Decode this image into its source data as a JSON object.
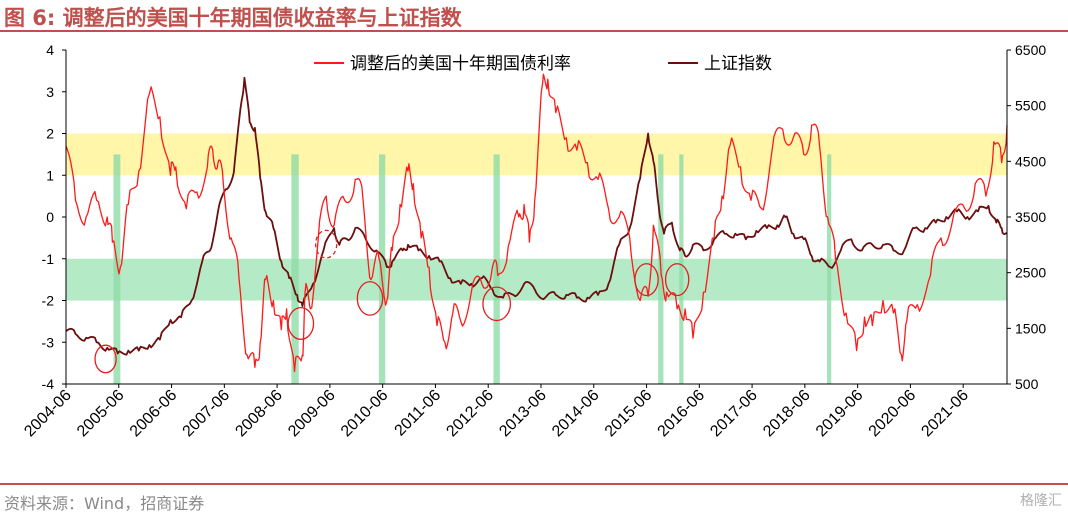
{
  "figure": {
    "title": "图 6:  调整后的美国十年期国债收益率与上证指数",
    "source": "资料来源：Wind，招商证券",
    "watermark": "格隆汇"
  },
  "colors": {
    "us10y": "#ff1a1a",
    "shanghai": "#6b0e0e",
    "high_band": "#fff59a",
    "low_band": "#a8e6bc",
    "event_bar": "#8fdca6",
    "circle": "#e02020"
  },
  "chart_data": {
    "type": "line",
    "title": "",
    "x_ticks": [
      "2004-06",
      "2005-06",
      "2006-06",
      "2007-06",
      "2008-06",
      "2009-06",
      "2010-06",
      "2011-06",
      "2012-06",
      "2013-06",
      "2014-06",
      "2015-06",
      "2016-06",
      "2017-06",
      "2018-06",
      "2019-06",
      "2020-06",
      "2021-06"
    ],
    "x_range": [
      2004.42,
      2022.25
    ],
    "y_left": {
      "ylim": [
        -4,
        4
      ],
      "ticks": [
        "4",
        "3",
        "2",
        "1",
        "0",
        "-1",
        "-2",
        "-3",
        "-4"
      ]
    },
    "y_right": {
      "ylim": [
        500,
        6500
      ],
      "ticks": [
        "6500",
        "5500",
        "4500",
        "3500",
        "2500",
        "1500",
        "500"
      ]
    },
    "bands": [
      {
        "name": "high",
        "axis": "left",
        "range": [
          1,
          2
        ]
      },
      {
        "name": "low",
        "axis": "left",
        "range": [
          -2,
          -1
        ]
      }
    ],
    "event_bars": [
      {
        "start": 2005.32,
        "end": 2005.45
      },
      {
        "start": 2008.69,
        "end": 2008.83
      },
      {
        "start": 2010.35,
        "end": 2010.47
      },
      {
        "start": 2012.52,
        "end": 2012.64
      },
      {
        "start": 2015.64,
        "end": 2015.74
      },
      {
        "start": 2016.04,
        "end": 2016.12
      },
      {
        "start": 2018.84,
        "end": 2018.92
      }
    ],
    "circles": [
      {
        "x": 2005.17,
        "y": -3.4,
        "rx": 0.2,
        "ry": 0.33,
        "style": "solid"
      },
      {
        "x": 2008.87,
        "y": -2.55,
        "rx": 0.24,
        "ry": 0.38,
        "style": "solid"
      },
      {
        "x": 2009.35,
        "y": -0.65,
        "rx": 0.2,
        "ry": 0.33,
        "style": "dashed"
      },
      {
        "x": 2010.18,
        "y": -1.95,
        "rx": 0.24,
        "ry": 0.4,
        "style": "solid"
      },
      {
        "x": 2012.58,
        "y": -2.08,
        "rx": 0.26,
        "ry": 0.4,
        "style": "solid"
      },
      {
        "x": 2015.42,
        "y": -1.5,
        "rx": 0.22,
        "ry": 0.38,
        "style": "solid"
      },
      {
        "x": 2016.0,
        "y": -1.5,
        "rx": 0.22,
        "ry": 0.38,
        "style": "solid"
      }
    ],
    "series": [
      {
        "name": "调整后的美国十年期国债利率",
        "axis": "left",
        "color": "#ff1a1a",
        "x": [
          2004.42,
          2004.6,
          2004.8,
          2005.0,
          2005.2,
          2005.3,
          2005.45,
          2005.6,
          2005.8,
          2006.0,
          2006.2,
          2006.4,
          2006.5,
          2006.7,
          2006.9,
          2007.1,
          2007.2,
          2007.3,
          2007.4,
          2007.55,
          2007.7,
          2007.85,
          2008.0,
          2008.1,
          2008.2,
          2008.35,
          2008.5,
          2008.6,
          2008.75,
          2008.9,
          2008.95,
          2009.05,
          2009.2,
          2009.35,
          2009.5,
          2009.7,
          2009.9,
          2010.05,
          2010.2,
          2010.35,
          2010.5,
          2010.6,
          2010.75,
          2010.9,
          2011.0,
          2011.15,
          2011.3,
          2011.45,
          2011.6,
          2011.75,
          2011.9,
          2012.1,
          2012.3,
          2012.5,
          2012.6,
          2012.8,
          2013.0,
          2013.1,
          2013.2,
          2013.3,
          2013.45,
          2013.55,
          2013.7,
          2013.9,
          2014.1,
          2014.3,
          2014.5,
          2014.7,
          2014.9,
          2015.1,
          2015.3,
          2015.45,
          2015.55,
          2015.7,
          2015.8,
          2016.0,
          2016.15,
          2016.3,
          2016.5,
          2016.7,
          2016.85,
          2017.0,
          2017.2,
          2017.4,
          2017.6,
          2017.8,
          2018.0,
          2018.2,
          2018.4,
          2018.55,
          2018.7,
          2018.85,
          2019.0,
          2019.2,
          2019.4,
          2019.55,
          2019.7,
          2019.9,
          2020.1,
          2020.25,
          2020.35,
          2020.55,
          2020.8,
          2021.0,
          2021.2,
          2021.45,
          2021.65,
          2021.85,
          2022.0,
          2022.15,
          2022.25
        ],
        "y": [
          1.7,
          0.4,
          0.0,
          0.4,
          0.0,
          -0.6,
          -1.2,
          0.3,
          1.1,
          2.95,
          2.4,
          1.0,
          1.2,
          0.2,
          0.6,
          1.2,
          1.6,
          1.3,
          0.8,
          -0.5,
          -1.5,
          -3.3,
          -3.6,
          -3.0,
          -1.5,
          -2.0,
          -2.7,
          -2.2,
          -3.7,
          -3.3,
          -1.8,
          -2.2,
          -0.5,
          0.5,
          -0.2,
          0.4,
          0.9,
          0.4,
          -1.5,
          -1.0,
          -2.0,
          -0.8,
          0.3,
          1.1,
          0.8,
          -0.5,
          -1.2,
          -2.6,
          -3.0,
          -2.3,
          -2.5,
          -1.8,
          -1.6,
          -1.2,
          -1.4,
          -0.7,
          0.0,
          0.3,
          -0.6,
          0.4,
          3.2,
          3.3,
          2.5,
          1.9,
          1.6,
          1.3,
          0.9,
          0.2,
          0.0,
          -0.5,
          -2.0,
          -1.9,
          -0.2,
          -1.4,
          -1.8,
          -2.2,
          -2.2,
          -2.9,
          -1.8,
          -0.5,
          0.5,
          1.7,
          1.2,
          0.4,
          0.2,
          1.6,
          2.1,
          1.9,
          1.5,
          2.2,
          1.7,
          0.0,
          -1.0,
          -2.3,
          -3.2,
          -2.4,
          -2.6,
          -2.0,
          -2.3,
          -3.3,
          -2.5,
          -2.1,
          -1.4,
          -0.5,
          -0.2,
          0.2,
          0.8,
          0.5,
          1.8,
          1.3,
          2.2
        ]
      },
      {
        "name": "上证指数",
        "axis": "right",
        "color": "#6b0e0e",
        "x": [
          2004.42,
          2004.6,
          2004.8,
          2005.0,
          2005.2,
          2005.4,
          2005.6,
          2005.8,
          2006.0,
          2006.2,
          2006.4,
          2006.6,
          2006.8,
          2007.0,
          2007.15,
          2007.3,
          2007.45,
          2007.6,
          2007.75,
          2007.8,
          2007.9,
          2008.0,
          2008.1,
          2008.2,
          2008.35,
          2008.5,
          2008.65,
          2008.8,
          2008.9,
          2009.1,
          2009.3,
          2009.5,
          2009.6,
          2009.75,
          2009.9,
          2010.1,
          2010.3,
          2010.5,
          2010.6,
          2010.8,
          2010.9,
          2011.1,
          2011.3,
          2011.5,
          2011.7,
          2011.9,
          2012.1,
          2012.3,
          2012.5,
          2012.7,
          2012.9,
          2013.1,
          2013.3,
          2013.5,
          2013.7,
          2013.9,
          2014.1,
          2014.3,
          2014.5,
          2014.7,
          2014.9,
          2015.1,
          2015.3,
          2015.45,
          2015.55,
          2015.65,
          2015.75,
          2015.9,
          2016.05,
          2016.15,
          2016.3,
          2016.5,
          2016.7,
          2016.9,
          2017.1,
          2017.3,
          2017.5,
          2017.7,
          2017.9,
          2018.05,
          2018.2,
          2018.4,
          2018.55,
          2018.7,
          2018.9,
          2019.1,
          2019.3,
          2019.5,
          2019.7,
          2019.9,
          2020.1,
          2020.3,
          2020.5,
          2020.7,
          2020.9,
          2021.1,
          2021.3,
          2021.5,
          2021.7,
          2021.9,
          2022.05,
          2022.15,
          2022.25
        ],
        "y": [
          1450,
          1400,
          1330,
          1250,
          1150,
          1050,
          1100,
          1100,
          1200,
          1300,
          1650,
          1700,
          2000,
          2700,
          2900,
          3600,
          4000,
          4300,
          5600,
          6000,
          5200,
          5100,
          4200,
          3600,
          3300,
          2700,
          2400,
          2100,
          1900,
          2300,
          2900,
          3300,
          3000,
          3100,
          3300,
          3100,
          2900,
          2600,
          2700,
          2900,
          3000,
          2900,
          2800,
          2700,
          2400,
          2300,
          2300,
          2400,
          2200,
          2050,
          2100,
          2300,
          2200,
          2050,
          2100,
          2100,
          2050,
          2050,
          2100,
          2300,
          3000,
          3300,
          4200,
          5000,
          4500,
          3700,
          3200,
          3400,
          2900,
          2800,
          3000,
          2900,
          3100,
          3200,
          3200,
          3100,
          3250,
          3300,
          3350,
          3500,
          3200,
          3100,
          2800,
          2700,
          2600,
          2900,
          3100,
          2900,
          3000,
          3000,
          2900,
          2900,
          3300,
          3300,
          3400,
          3500,
          3600,
          3500,
          3600,
          3700,
          3400,
          3300,
          3200
        ]
      }
    ]
  }
}
